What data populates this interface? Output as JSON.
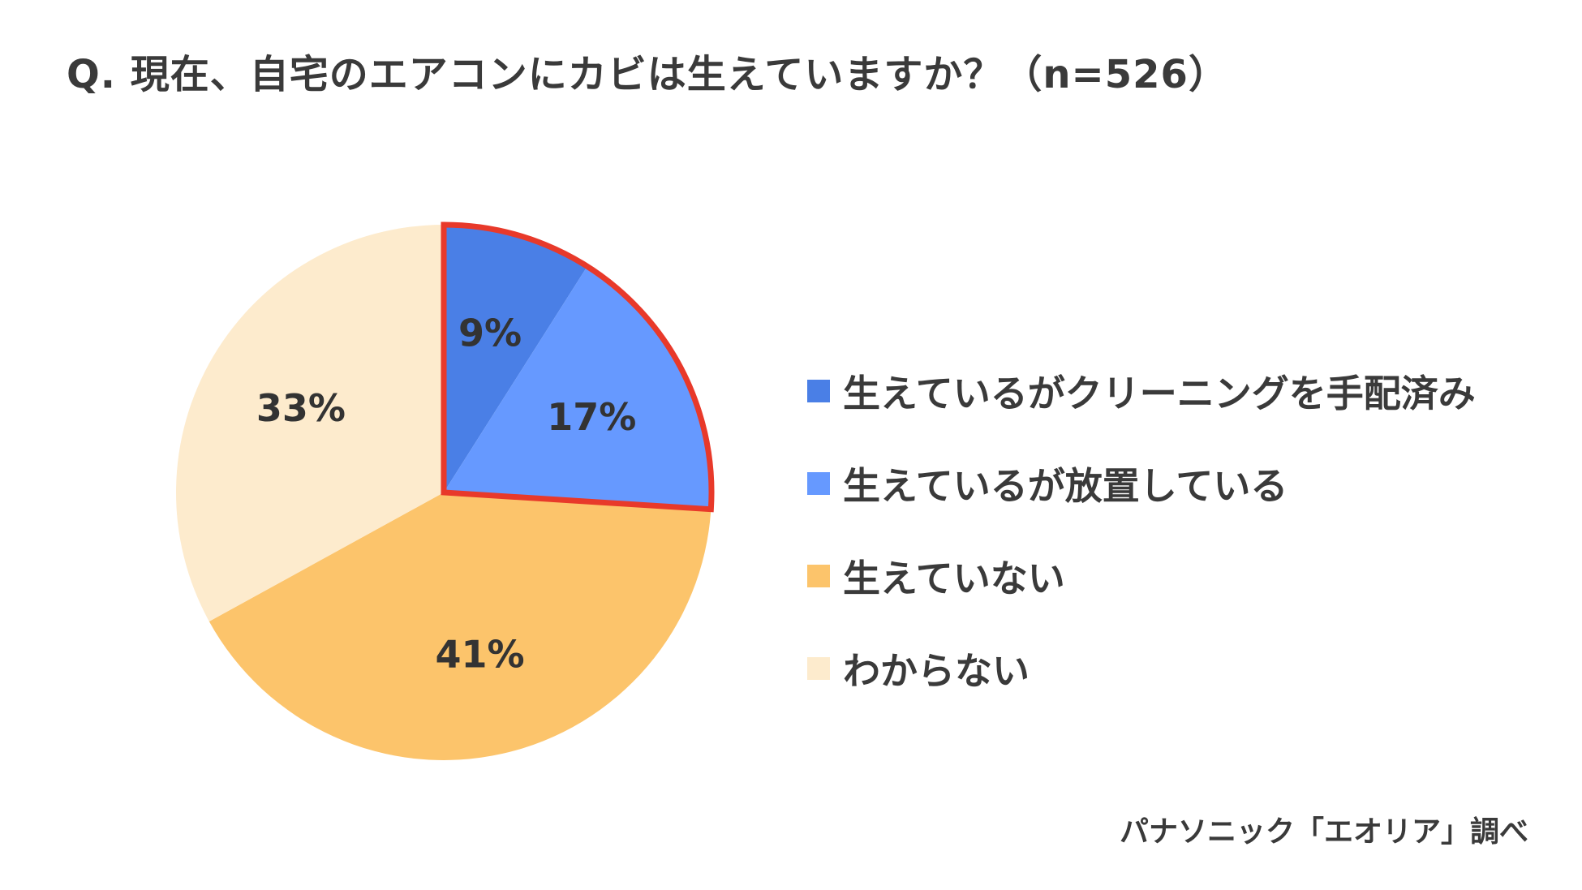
{
  "title": "Q. 現在、自宅のエアコンにカビは生えていますか？（n=526）",
  "source": "パナソニック「エオリア」調べ",
  "chart_data": {
    "type": "pie",
    "categories": [
      "生えているがクリーニングを手配済み",
      "生えているが放置している",
      "生えていない",
      "わからない"
    ],
    "values": [
      9,
      17,
      41,
      33
    ],
    "value_labels": [
      "9%",
      "17%",
      "41%",
      "33%"
    ],
    "colors": [
      "#4a7fe6",
      "#6699ff",
      "#fcc46b",
      "#fdebcd"
    ],
    "highlight": {
      "slices": [
        0,
        1
      ],
      "stroke_color": "#e8392a"
    },
    "start_angle": "12 o'clock",
    "direction": "clockwise",
    "legend_position": "right"
  }
}
